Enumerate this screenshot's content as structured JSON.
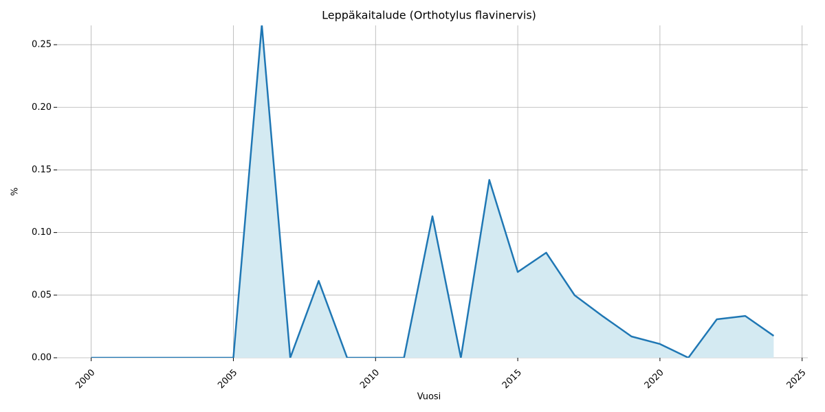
{
  "chart_data": {
    "type": "area",
    "title": "Leppäkaitalude (Orthotylus flavinervis)",
    "x_label": "Vuosi",
    "y_label": "%",
    "x": [
      2000,
      2001,
      2002,
      2003,
      2004,
      2005,
      2006,
      2007,
      2008,
      2009,
      2010,
      2011,
      2012,
      2013,
      2014,
      2015,
      2016,
      2017,
      2018,
      2019,
      2020,
      2021,
      2022,
      2023,
      2024
    ],
    "values": [
      0,
      0,
      0,
      0,
      0,
      0,
      0.266,
      0,
      0.0614,
      0,
      0,
      0,
      0.113,
      0,
      0.142,
      0.0685,
      0.0839,
      0.0499,
      0.033,
      0.017,
      0.011,
      0,
      0.0307,
      0.0334,
      0.0175
    ],
    "color": "#1f77b4",
    "fill_color": "#d4eaf2",
    "xlim": [
      1998.8,
      2025.2
    ],
    "xticks": [
      2000,
      2005,
      2010,
      2015,
      2020,
      2025
    ],
    "ylim": [
      0,
      0.2654
    ],
    "yticks": [
      {
        "value": 0,
        "label": "0.00"
      },
      {
        "value": 0.05,
        "label": "0.05"
      },
      {
        "value": 0.1,
        "label": "0.10"
      },
      {
        "value": 0.15,
        "label": "0.15"
      },
      {
        "value": 0.2,
        "label": "0.20"
      },
      {
        "value": 0.25,
        "label": "0.25"
      }
    ],
    "grid": true
  }
}
